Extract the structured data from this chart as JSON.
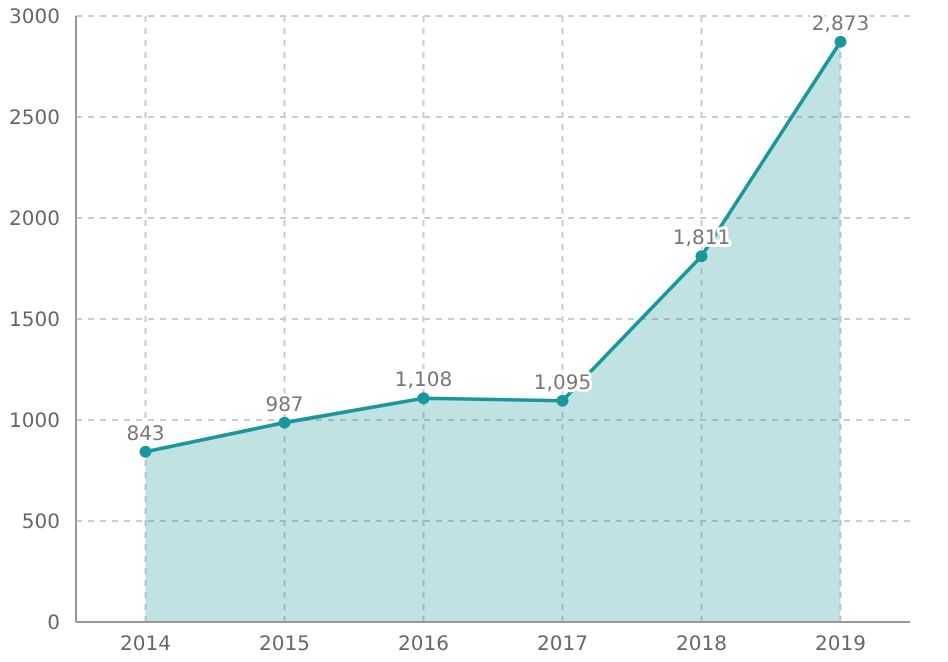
{
  "chart_data": {
    "type": "area",
    "categories": [
      "2014",
      "2015",
      "2016",
      "2017",
      "2018",
      "2019"
    ],
    "series": [
      {
        "color": "#1b979c",
        "values": [
          843,
          987,
          1108,
          1095,
          1811,
          2873
        ],
        "value_labels": [
          "843",
          "987",
          "1,108",
          "1,095",
          "1,811",
          "2,873"
        ]
      }
    ],
    "ylim": [
      0,
      3000
    ],
    "yticks": [
      0,
      500,
      1000,
      1500,
      2000,
      2500,
      3000
    ],
    "grid": true,
    "marker": "circle",
    "line_style": "solid"
  }
}
